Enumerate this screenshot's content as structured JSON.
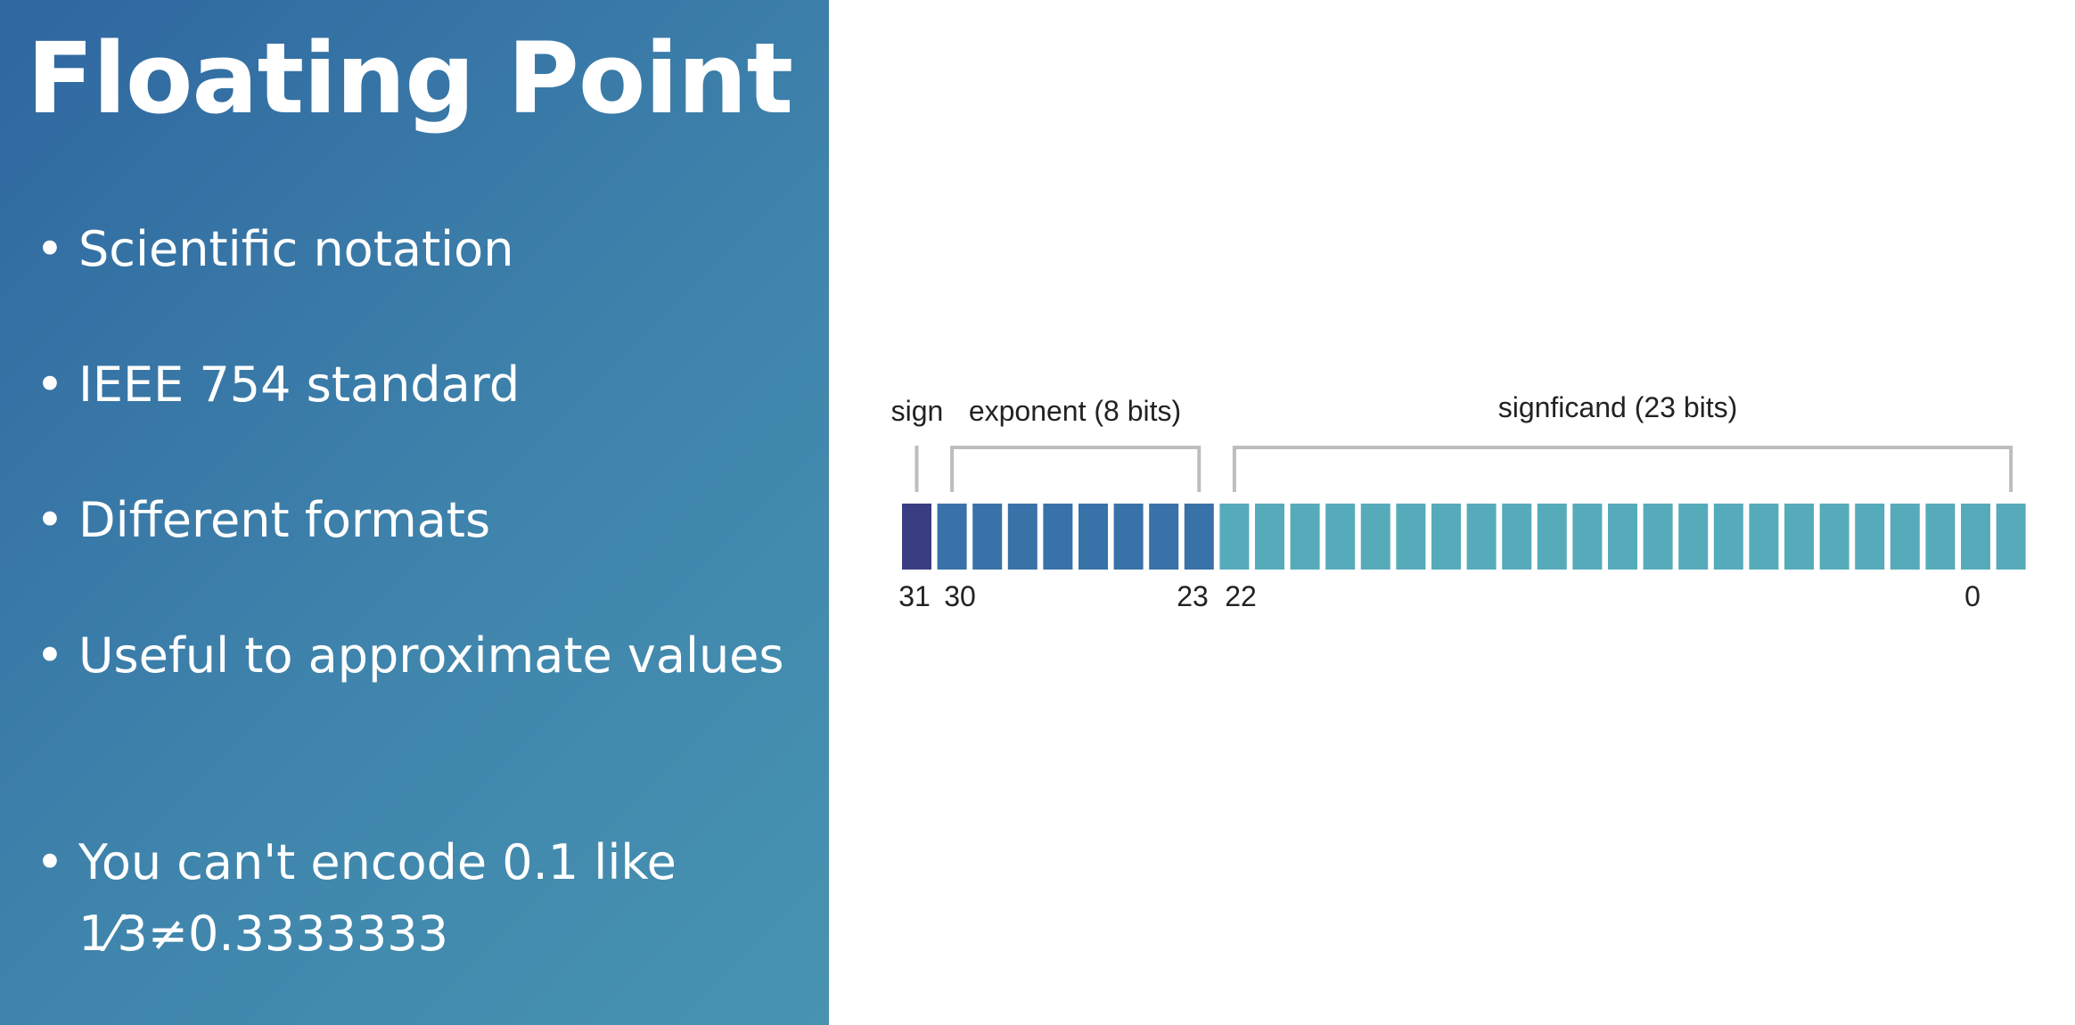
{
  "slide": {
    "title": "Floating Point",
    "bullets": [
      "Scientific notation",
      "IEEE 754 standard",
      "Different formats",
      "Useful to approximate values",
      "You can't encode 0.1 like 1⁄3≠0.3333333"
    ],
    "bullet_glyph": "•"
  },
  "diagram": {
    "total_bits": 32,
    "fields": [
      {
        "name": "sign",
        "label": "sign",
        "bits": 1,
        "high_bit": 31,
        "low_bit": 31,
        "color": "#3b3d82"
      },
      {
        "name": "exponent",
        "label": "exponent (8 bits)",
        "bits": 8,
        "high_bit": 30,
        "low_bit": 23,
        "color": "#3872a8"
      },
      {
        "name": "significand",
        "label": "signficand (23 bits)",
        "bits": 23,
        "high_bit": 22,
        "low_bit": 0,
        "color": "#56abba"
      }
    ],
    "bit_labels": {
      "sign_high": "31",
      "exponent_high": "30",
      "exponent_low": "23",
      "significand_high": "22",
      "significand_low": "0"
    },
    "bracket_color": "#bdbdbd"
  },
  "colors": {
    "panel_start": "#2f67a0",
    "panel_end": "#4793b1",
    "text_light": "#ffffff"
  }
}
